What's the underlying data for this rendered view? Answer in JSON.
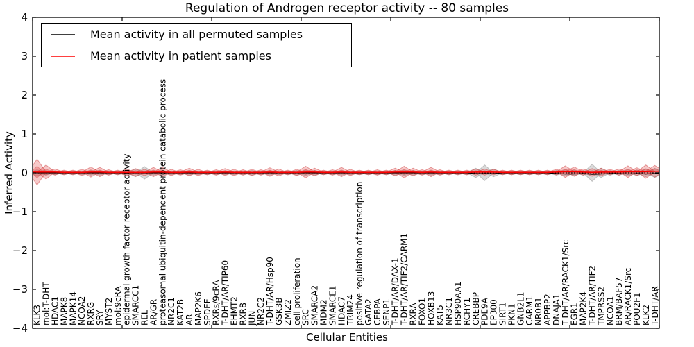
{
  "title": "Regulation of Androgen receptor activity -- 80 samples",
  "legend": {
    "items": [
      {
        "label": "Mean activity in all permuted samples",
        "color": "#000000"
      },
      {
        "label": "Mean activity in patient samples",
        "color": "#ff0000"
      }
    ]
  },
  "colors": {
    "patient_line": "#ff0000",
    "patient_fill": "#e03c3c",
    "permuted_line": "#000000",
    "permuted_fill": "#bdbdbd",
    "axis": "#000000"
  },
  "chart_data": {
    "type": "area",
    "title": "Regulation of Androgen receptor activity -- 80 samples",
    "xlabel": "Cellular Entities",
    "ylabel": "Inferred Activity",
    "ylim": [
      -4,
      4
    ],
    "ytick_labels": [
      "4",
      "3",
      "2",
      "1",
      "0",
      "−1",
      "−2",
      "−3",
      "−4"
    ],
    "ytick_values": [
      4,
      3,
      2,
      1,
      0,
      -1,
      -2,
      -3,
      -4
    ],
    "xtick_step": 10,
    "grid": false,
    "legend_position": "upper left",
    "zero_line": true,
    "categories": [
      "KLK3",
      "mol:T-DHT",
      "HDAC1",
      "MAPK8",
      "MAPK14",
      "NCOA2",
      "RXRG",
      "SRY",
      "MYST2",
      "mol:9cRA",
      "epidermal growth factor receptor activity",
      "SMARCC1",
      "REL",
      "AR/GR",
      "proteasomal ubiquitin-dependent protein catabolic process",
      "NR2C1",
      "KAT2B",
      "AR",
      "MAP2K6",
      "SPDEF",
      "RXRs/9cRA",
      "T-DHT/AR/TIP60",
      "EHMT2",
      "RXRB",
      "JUN",
      "NR2C2",
      "T-DHT/AR/Hsp90",
      "GSK3B",
      "ZMIZ2",
      "cell proliferation",
      "SRC",
      "SMARCA2",
      "MDM2",
      "SMARCE1",
      "HDAC7",
      "TRIM24",
      "positive regulation of transcription",
      "GATA2",
      "CEBPA",
      "SENP1",
      "T-DHT/AR/DAX-1",
      "T-DHT/AR/TIF2/CARM1",
      "RXRA",
      "FOXO1",
      "HOXB13",
      "KAT5",
      "NR3C1",
      "HSP90AA1",
      "RCHY1",
      "CREBBP",
      "PDE9A",
      "EP300",
      "SIRT1",
      "PKN1",
      "GNB2L1",
      "CARM1",
      "NR0B1",
      "APPBP2",
      "DNAJA1",
      "T-DHT/AR/RACK1/Src",
      "EGR1",
      "MAP2K4",
      "T-DHT/AR/TIF2",
      "TMPRSS2",
      "NCOA1",
      "BRM/BAF57",
      "AR/RACK1/Src",
      "POU2F1",
      "KLK2",
      "T-DHT/AR"
    ],
    "series": [
      {
        "name": "Mean activity in all permuted samples",
        "color": "#000000",
        "values": [
          0,
          0,
          0,
          0,
          0,
          0,
          0,
          0,
          0,
          0,
          0,
          0,
          0,
          0,
          0,
          0,
          0,
          0,
          0,
          0,
          0,
          0,
          0,
          0,
          0,
          0,
          0,
          0,
          0,
          0,
          0,
          0,
          0,
          0,
          0,
          0,
          0,
          0,
          0,
          0,
          0,
          0,
          0,
          0,
          0,
          0,
          0,
          0,
          0,
          -0.02,
          -0.02,
          -0.02,
          0,
          0,
          0,
          0,
          0,
          0,
          -0.02,
          -0.03,
          -0.03,
          -0.02,
          -0.04,
          -0.03,
          -0.02,
          -0.02,
          -0.03,
          -0.02,
          -0.03,
          -0.02
        ]
      },
      {
        "name": "Mean activity in patient samples",
        "color": "#ff0000",
        "values": [
          0.02,
          0.02,
          0.02,
          0.01,
          0.01,
          0.01,
          0.02,
          0.02,
          0.01,
          0.01,
          0.01,
          0.01,
          0.01,
          0.02,
          0.02,
          0.01,
          0.01,
          0.02,
          0.01,
          0.01,
          0.01,
          0.02,
          0.01,
          0.01,
          0.01,
          0.01,
          0.02,
          0.01,
          0.01,
          0.01,
          0.02,
          0.02,
          0.01,
          0.01,
          0.02,
          0.01,
          0.01,
          0.01,
          0.01,
          0.01,
          0.02,
          0.02,
          0.02,
          0.01,
          0.02,
          0.01,
          0.01,
          0.01,
          0.01,
          0.02,
          0.02,
          0.02,
          0.01,
          0.01,
          0.01,
          0.01,
          0.01,
          0.01,
          0.02,
          0.03,
          0.03,
          0.02,
          0.01,
          0.02,
          0.02,
          0.02,
          0.03,
          0.03,
          0.03,
          0.04
        ]
      }
    ],
    "spread_patient": [
      0.33,
      0.18,
      0.08,
      0.06,
      0.06,
      0.08,
      0.13,
      0.12,
      0.07,
      0.06,
      0.09,
      0.1,
      0.08,
      0.12,
      0.12,
      0.08,
      0.07,
      0.1,
      0.08,
      0.06,
      0.07,
      0.09,
      0.08,
      0.07,
      0.08,
      0.07,
      0.11,
      0.09,
      0.06,
      0.08,
      0.15,
      0.1,
      0.06,
      0.07,
      0.12,
      0.08,
      0.06,
      0.06,
      0.07,
      0.06,
      0.1,
      0.15,
      0.1,
      0.07,
      0.12,
      0.07,
      0.06,
      0.06,
      0.06,
      0.08,
      0.08,
      0.07,
      0.06,
      0.06,
      0.06,
      0.06,
      0.06,
      0.06,
      0.07,
      0.15,
      0.12,
      0.08,
      0.1,
      0.1,
      0.07,
      0.08,
      0.15,
      0.1,
      0.17,
      0.15
    ],
    "spread_permuted": [
      0.08,
      0.06,
      0.05,
      0.05,
      0.05,
      0.05,
      0.06,
      0.06,
      0.05,
      0.05,
      0.06,
      0.1,
      0.16,
      0.06,
      0.06,
      0.05,
      0.05,
      0.06,
      0.05,
      0.05,
      0.05,
      0.05,
      0.05,
      0.05,
      0.06,
      0.05,
      0.06,
      0.05,
      0.05,
      0.06,
      0.07,
      0.06,
      0.05,
      0.05,
      0.06,
      0.05,
      0.05,
      0.05,
      0.05,
      0.05,
      0.06,
      0.07,
      0.06,
      0.05,
      0.06,
      0.05,
      0.05,
      0.05,
      0.05,
      0.12,
      0.2,
      0.1,
      0.05,
      0.05,
      0.05,
      0.05,
      0.05,
      0.05,
      0.06,
      0.08,
      0.07,
      0.06,
      0.22,
      0.12,
      0.06,
      0.06,
      0.08,
      0.07,
      0.1,
      0.12
    ]
  }
}
